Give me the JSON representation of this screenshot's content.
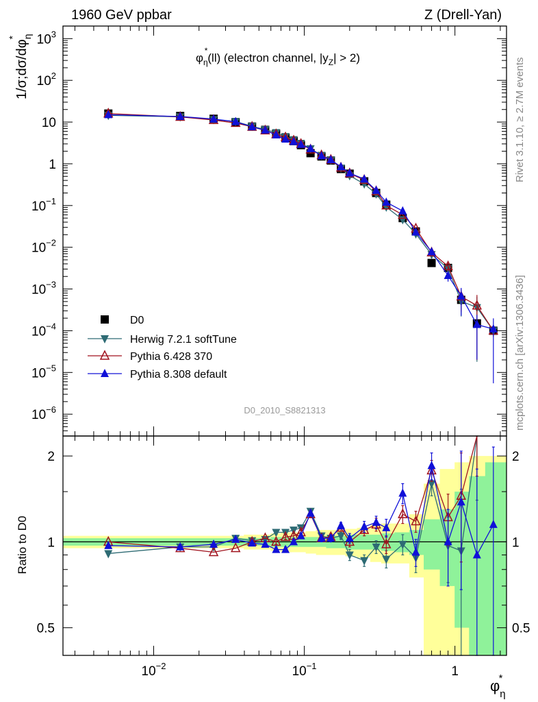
{
  "header": {
    "left": "1960 GeV ppbar",
    "right": "Z (Drell-Yan)"
  },
  "side_labels": {
    "rivet": "Rivet 3.1.10, ≥ 2.7M events",
    "mcplots": "mcplots.cern.ch [arXiv:1306.3436]"
  },
  "chart_data": {
    "type": "scatter",
    "title": "φη*(ll) (electron channel, |yZ| > 2)",
    "watermark": "D0_2010_S8821313",
    "xlabel": "φη*",
    "ylabel": "1/σ;dσ/dφη*",
    "ratio_ylabel": "Ratio to D0",
    "xscale": "log",
    "yscale": "log",
    "xlim": [
      0.0025,
      2.2
    ],
    "ylim": [
      3e-07,
      2000
    ],
    "ratio_ylim": [
      0.4,
      2.35
    ],
    "x_ticks": [
      "10^-2",
      "10^-1",
      "1"
    ],
    "y_ticks": [
      "10^-6",
      "10^-5",
      "10^-4",
      "10^-3",
      "10^-2",
      "10^-1",
      "1",
      "10",
      "10^2",
      "10^3"
    ],
    "ratio_ticks": [
      "0.5",
      "1",
      "2"
    ],
    "x": [
      0.005,
      0.015,
      0.025,
      0.035,
      0.045,
      0.055,
      0.065,
      0.075,
      0.085,
      0.095,
      0.11,
      0.13,
      0.15,
      0.175,
      0.2,
      0.25,
      0.3,
      0.35,
      0.45,
      0.55,
      0.7,
      0.9,
      1.1,
      1.4,
      1.8
    ],
    "legend": [
      "D0",
      "Herwig 7.2.1 softTune",
      "Pythia 6.428 370",
      "Pythia 8.308 default"
    ],
    "series": [
      {
        "name": "D0",
        "color": "#000000",
        "marker": "square",
        "values": [
          16,
          14,
          12,
          10,
          7.8,
          6.5,
          5.2,
          4.2,
          3.5,
          2.8,
          1.8,
          1.5,
          1.2,
          0.75,
          0.58,
          0.38,
          0.2,
          0.105,
          0.05,
          0.024,
          0.0042,
          0.0032,
          0.00055,
          0.00015,
          0.0001
        ],
        "ratio_band_inner": [
          0.03,
          0.03,
          0.03,
          0.03,
          0.03,
          0.03,
          0.04,
          0.04,
          0.04,
          0.04,
          0.04,
          0.04,
          0.05,
          0.05,
          0.06,
          0.06,
          0.06,
          0.07,
          0.08,
          0.1,
          0.2,
          0.3,
          0.5,
          0.7,
          0.9
        ],
        "ratio_band_outer": [
          0.05,
          0.05,
          0.05,
          0.05,
          0.06,
          0.06,
          0.07,
          0.08,
          0.08,
          0.08,
          0.09,
          0.1,
          0.1,
          0.1,
          0.11,
          0.12,
          0.15,
          0.16,
          0.16,
          0.25,
          0.6,
          0.8,
          0.9,
          1.0,
          1.0
        ]
      },
      {
        "name": "Herwig 7.2.1 softTune",
        "color": "#2e6b74",
        "marker": "triangle-down",
        "values": [
          14.5,
          13.4,
          11.5,
          10.3,
          7.9,
          6.6,
          5.6,
          4.5,
          3.8,
          3.1,
          2.3,
          1.6,
          1.23,
          0.79,
          0.52,
          0.33,
          0.19,
          0.092,
          0.046,
          0.021,
          0.0067,
          0.0031,
          0.00051,
          0.00036,
          0.0001
        ],
        "ratio": [
          0.91,
          0.96,
          0.96,
          1.03,
          1.01,
          1.02,
          1.08,
          1.08,
          1.1,
          1.12,
          1.28,
          1.05,
          1.03,
          1.05,
          0.9,
          0.86,
          0.96,
          0.87,
          0.98,
          0.88,
          1.6,
          0.97,
          0.93,
          2.4,
          null
        ],
        "err": [
          0.01,
          0.01,
          0.01,
          0.01,
          0.01,
          0.01,
          0.02,
          0.02,
          0.02,
          0.02,
          0.03,
          0.02,
          0.02,
          0.03,
          0.04,
          0.04,
          0.05,
          0.06,
          0.08,
          0.1,
          0.15,
          0.25,
          0.6,
          1.0,
          0
        ]
      },
      {
        "name": "Pythia 6.428 370",
        "color": "#a0121e",
        "marker": "triangle-open",
        "values": [
          16,
          13.3,
          11.2,
          9.5,
          7.7,
          6.3,
          5.1,
          4.3,
          3.6,
          3.0,
          2.2,
          1.6,
          1.25,
          0.81,
          0.59,
          0.41,
          0.22,
          0.1,
          0.06,
          0.028,
          0.0075,
          0.0035,
          0.00066,
          0.0004,
          0.0001
        ],
        "ratio": [
          1.0,
          0.95,
          0.92,
          0.95,
          1.0,
          1.03,
          1.0,
          1.04,
          1.05,
          1.08,
          1.25,
          1.03,
          1.04,
          1.12,
          1.0,
          1.1,
          1.15,
          0.98,
          1.25,
          1.18,
          1.78,
          1.22,
          1.45,
          2.7,
          null
        ],
        "err": [
          0.01,
          0.01,
          0.01,
          0.01,
          0.01,
          0.01,
          0.02,
          0.02,
          0.02,
          0.02,
          0.03,
          0.02,
          0.03,
          0.03,
          0.04,
          0.05,
          0.06,
          0.07,
          0.09,
          0.1,
          0.15,
          0.25,
          0.6,
          1.0,
          0
        ]
      },
      {
        "name": "Pythia 8.308 default",
        "color": "#1010d8",
        "marker": "triangle-up",
        "values": [
          15,
          13.6,
          11.8,
          10.2,
          7.7,
          6.4,
          4.9,
          3.9,
          3.4,
          2.9,
          2.3,
          1.55,
          1.25,
          0.85,
          0.6,
          0.43,
          0.23,
          0.12,
          0.074,
          0.023,
          0.0078,
          0.0021,
          0.00068,
          0.00014,
          0.00011
        ],
        "ratio": [
          0.97,
          0.96,
          0.98,
          1.02,
          0.99,
          0.98,
          0.94,
          0.94,
          1.0,
          1.05,
          1.26,
          1.03,
          1.03,
          1.14,
          1.03,
          1.13,
          1.17,
          1.12,
          1.48,
          0.92,
          1.85,
          1.0,
          1.38,
          0.9,
          1.15
        ],
        "err": [
          0.01,
          0.01,
          0.01,
          0.01,
          0.01,
          0.02,
          0.02,
          0.02,
          0.02,
          0.02,
          0.03,
          0.03,
          0.03,
          0.03,
          0.04,
          0.05,
          0.06,
          0.08,
          0.12,
          0.1,
          0.2,
          0.3,
          0.7,
          0.9,
          1.0
        ]
      }
    ]
  }
}
